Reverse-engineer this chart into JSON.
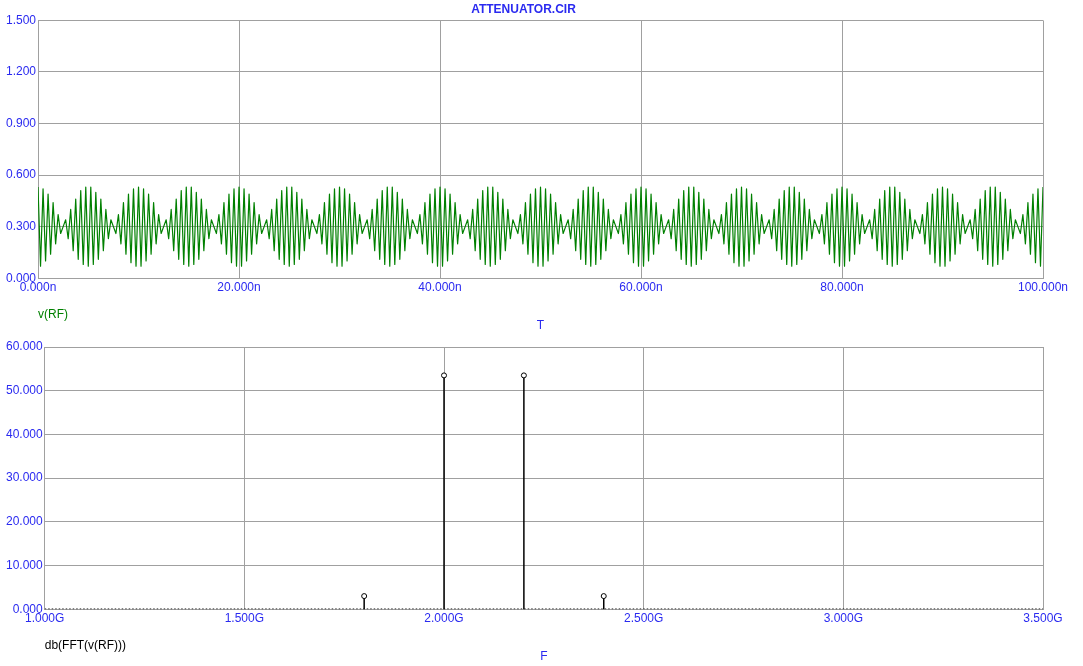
{
  "chart_data": [
    {
      "type": "line",
      "title": "ATTENUATOR.CIR",
      "xlabel": "T",
      "grid": true,
      "legend": "bottom left",
      "marker": "none",
      "line_style": "solid",
      "xlim": [
        0,
        100
      ],
      "xticks": [
        {
          "value": 0,
          "label": "0.000n"
        },
        {
          "value": 20,
          "label": "20.000n"
        },
        {
          "value": 40,
          "label": "40.000n"
        },
        {
          "value": 60,
          "label": "60.000n"
        },
        {
          "value": 80,
          "label": "80.000n"
        },
        {
          "value": 100,
          "label": "100.000n"
        }
      ],
      "ylim": [
        0,
        1.5
      ],
      "yticks": [
        {
          "value": 0,
          "label": "0.000"
        },
        {
          "value": 0.3,
          "label": "0.300"
        },
        {
          "value": 0.6,
          "label": "0.600"
        },
        {
          "value": 0.9,
          "label": "0.900"
        },
        {
          "value": 1.2,
          "label": "1.200"
        },
        {
          "value": 1.5,
          "label": "1.500"
        }
      ],
      "series": [
        {
          "name": "v(RF)",
          "color": "#008000",
          "x": [
            0,
            0.25,
            0.5,
            0.75,
            1,
            1.25,
            1.5,
            1.75,
            2,
            2.25,
            2.5,
            2.75,
            3,
            3.25,
            3.5,
            3.75,
            4,
            4.25,
            4.5,
            4.75,
            5,
            5.25,
            5.5,
            5.75,
            6,
            6.25,
            6.5,
            6.75,
            7,
            7.25,
            7.5,
            7.75,
            8,
            8.25,
            8.5,
            8.75,
            9,
            9.25,
            9.5,
            9.75,
            10,
            10.25,
            10.5,
            10.75,
            11,
            11.25,
            11.5,
            11.75,
            12,
            12.25,
            12.5,
            12.75,
            13,
            13.25,
            13.5,
            13.75,
            14,
            14.25,
            14.5,
            14.75,
            15,
            15.25,
            15.5,
            15.75,
            16,
            16.25,
            16.5,
            16.75,
            17,
            17.25,
            17.5,
            17.75,
            18,
            18.25,
            18.5,
            18.75,
            19,
            19.25,
            19.5,
            19.75,
            20,
            20.25,
            20.5,
            20.75,
            21,
            21.25,
            21.5,
            21.75,
            22,
            22.25,
            22.5,
            22.75,
            23,
            23.25,
            23.5,
            23.75,
            24,
            24.25,
            24.5,
            24.75,
            25,
            25.25,
            25.5,
            25.75,
            26,
            26.25,
            26.5,
            26.75,
            27,
            27.25,
            27.5,
            27.75,
            28,
            28.25,
            28.5,
            28.75,
            29,
            29.25,
            29.5,
            29.75,
            30,
            30.25,
            30.5,
            30.75,
            31,
            31.25,
            31.5,
            31.75,
            32,
            32.25,
            32.5,
            32.75,
            33,
            33.25,
            33.5,
            33.75,
            34,
            34.25,
            34.5,
            34.75,
            35,
            35.25,
            35.5,
            35.75,
            36,
            36.25,
            36.5,
            36.75,
            37,
            37.25,
            37.5,
            37.75,
            38,
            38.25,
            38.5,
            38.75,
            39,
            39.25,
            39.5,
            39.75,
            40,
            40.25,
            40.5,
            40.75,
            41,
            41.25,
            41.5,
            41.75,
            42,
            42.25,
            42.5,
            42.75,
            43,
            43.25,
            43.5,
            43.75,
            44,
            44.25,
            44.5,
            44.75,
            45,
            45.25,
            45.5,
            45.75,
            46,
            46.25,
            46.5,
            46.75,
            47,
            47.25,
            47.5,
            47.75,
            48,
            48.25,
            48.5,
            48.75,
            49,
            49.25,
            49.5,
            49.75,
            50,
            50.25,
            50.5,
            50.75,
            51,
            51.25,
            51.5,
            51.75,
            52,
            52.25,
            52.5,
            52.75,
            53,
            53.25,
            53.5,
            53.75,
            54,
            54.25,
            54.5,
            54.75,
            55,
            55.25,
            55.5,
            55.75,
            56,
            56.25,
            56.5,
            56.75,
            57,
            57.25,
            57.5,
            57.75,
            58,
            58.25,
            58.5,
            58.75,
            59,
            59.25,
            59.5,
            59.75,
            60,
            60.25,
            60.5,
            60.75,
            61,
            61.25,
            61.5,
            61.75,
            62,
            62.25,
            62.5,
            62.75,
            63,
            63.25,
            63.5,
            63.75,
            64,
            64.25,
            64.5,
            64.75,
            65,
            65.25,
            65.5,
            65.75,
            66,
            66.25,
            66.5,
            66.75,
            67,
            67.25,
            67.5,
            67.75,
            68,
            68.25,
            68.5,
            68.75,
            69,
            69.25,
            69.5,
            69.75,
            70,
            70.25,
            70.5,
            70.75,
            71,
            71.25,
            71.5,
            71.75,
            72,
            72.25,
            72.5,
            72.75,
            73,
            73.25,
            73.5,
            73.75,
            74,
            74.25,
            74.5,
            74.75,
            75,
            75.25,
            75.5,
            75.75,
            76,
            76.25,
            76.5,
            76.75,
            77,
            77.25,
            77.5,
            77.75,
            78,
            78.25,
            78.5,
            78.75,
            79,
            79.25,
            79.5,
            79.75,
            80,
            80.25,
            80.5,
            80.75,
            81,
            81.25,
            81.5,
            81.75,
            82,
            82.25,
            82.5,
            82.75,
            83,
            83.25,
            83.5,
            83.75,
            84,
            84.25,
            84.5,
            84.75,
            85,
            85.25,
            85.5,
            85.75,
            86,
            86.25,
            86.5,
            86.75,
            87,
            87.25,
            87.5,
            87.75,
            88,
            88.25,
            88.5,
            88.75,
            89,
            89.25,
            89.5,
            89.75,
            90,
            90.25,
            90.5,
            90.75,
            91,
            91.25,
            91.5,
            91.75,
            92,
            92.25,
            92.5,
            92.75,
            93,
            93.25,
            93.5,
            93.75,
            94,
            94.25,
            94.5,
            94.75,
            95,
            95.25,
            95.5,
            95.75,
            96,
            96.25,
            96.5,
            96.75,
            97,
            97.25,
            97.5,
            97.75,
            98,
            98.25,
            98.5,
            98.75,
            99,
            99.25,
            99.5,
            99.75,
            100
          ],
          "values": [
            0.53,
            0.07,
            0.52,
            0.1,
            0.49,
            0.14,
            0.44,
            0.2,
            0.37,
            0.26,
            0.3,
            0.34,
            0.23,
            0.4,
            0.16,
            0.46,
            0.11,
            0.51,
            0.08,
            0.53,
            0.07,
            0.53,
            0.08,
            0.5,
            0.11,
            0.46,
            0.16,
            0.4,
            0.23,
            0.34,
            0.3,
            0.26,
            0.37,
            0.2,
            0.44,
            0.14,
            0.49,
            0.09,
            0.52,
            0.07,
            0.53,
            0.07,
            0.52,
            0.1,
            0.49,
            0.14,
            0.44,
            0.2,
            0.37,
            0.26,
            0.3,
            0.34,
            0.23,
            0.4,
            0.16,
            0.46,
            0.11,
            0.51,
            0.08,
            0.53,
            0.07,
            0.53,
            0.08,
            0.5,
            0.11,
            0.46,
            0.16,
            0.4,
            0.23,
            0.34,
            0.3,
            0.26,
            0.37,
            0.2,
            0.44,
            0.14,
            0.49,
            0.09,
            0.52,
            0.07,
            0.53,
            0.07,
            0.52,
            0.1,
            0.49,
            0.14,
            0.44,
            0.2,
            0.37,
            0.26,
            0.3,
            0.34,
            0.23,
            0.4,
            0.16,
            0.46,
            0.11,
            0.51,
            0.08,
            0.53,
            0.07,
            0.53,
            0.08,
            0.5,
            0.11,
            0.46,
            0.16,
            0.4,
            0.23,
            0.34,
            0.3,
            0.26,
            0.37,
            0.2,
            0.44,
            0.14,
            0.49,
            0.09,
            0.52,
            0.07,
            0.53,
            0.07,
            0.52,
            0.1,
            0.49,
            0.14,
            0.44,
            0.2,
            0.37,
            0.26,
            0.3,
            0.34,
            0.23,
            0.4,
            0.16,
            0.46,
            0.11,
            0.51,
            0.08,
            0.53,
            0.07,
            0.53,
            0.08,
            0.5,
            0.11,
            0.46,
            0.16,
            0.4,
            0.23,
            0.34,
            0.3,
            0.26,
            0.37,
            0.2,
            0.44,
            0.14,
            0.49,
            0.09,
            0.52,
            0.07,
            0.53,
            0.07,
            0.52,
            0.1,
            0.49,
            0.14,
            0.44,
            0.2,
            0.37,
            0.26,
            0.3,
            0.34,
            0.23,
            0.4,
            0.16,
            0.46,
            0.11,
            0.51,
            0.08,
            0.53,
            0.07,
            0.53,
            0.08,
            0.5,
            0.11,
            0.46,
            0.16,
            0.4,
            0.23,
            0.34,
            0.3,
            0.26,
            0.37,
            0.2,
            0.44,
            0.14,
            0.49,
            0.09,
            0.52,
            0.07,
            0.53,
            0.07,
            0.52,
            0.1,
            0.49,
            0.14,
            0.44,
            0.2,
            0.37,
            0.26,
            0.3,
            0.34,
            0.23,
            0.4,
            0.16,
            0.46,
            0.11,
            0.51,
            0.08,
            0.53,
            0.07,
            0.53,
            0.08,
            0.5,
            0.11,
            0.46,
            0.16,
            0.4,
            0.23,
            0.34,
            0.3,
            0.26,
            0.37,
            0.2,
            0.44,
            0.14,
            0.49,
            0.09,
            0.52,
            0.07,
            0.53,
            0.07,
            0.52,
            0.1,
            0.49,
            0.14,
            0.44,
            0.2,
            0.37,
            0.26,
            0.3,
            0.34,
            0.23,
            0.4,
            0.16,
            0.46,
            0.11,
            0.51,
            0.08,
            0.53,
            0.07,
            0.53,
            0.08,
            0.5,
            0.11,
            0.46,
            0.16,
            0.4,
            0.23,
            0.34,
            0.3,
            0.26,
            0.37,
            0.2,
            0.44,
            0.14,
            0.49,
            0.09,
            0.52,
            0.07,
            0.53,
            0.07,
            0.52,
            0.1,
            0.49,
            0.14,
            0.44,
            0.2,
            0.37,
            0.26,
            0.3,
            0.34,
            0.23,
            0.4,
            0.16,
            0.46,
            0.11,
            0.51,
            0.08,
            0.53,
            0.07,
            0.53,
            0.08,
            0.5,
            0.11,
            0.46,
            0.16,
            0.4,
            0.23,
            0.34,
            0.3,
            0.26,
            0.37,
            0.2,
            0.44,
            0.14,
            0.49,
            0.09,
            0.52,
            0.07,
            0.53,
            0.07,
            0.52,
            0.1,
            0.49,
            0.14,
            0.44,
            0.2,
            0.37,
            0.26,
            0.3,
            0.34,
            0.23,
            0.4,
            0.16,
            0.46,
            0.11,
            0.51,
            0.08,
            0.53,
            0.07,
            0.53,
            0.08,
            0.5,
            0.11,
            0.46,
            0.16,
            0.4,
            0.23,
            0.34,
            0.3,
            0.26,
            0.37,
            0.2,
            0.44,
            0.14,
            0.49,
            0.09,
            0.52,
            0.07,
            0.53,
            0.07,
            0.52,
            0.1,
            0.49,
            0.14,
            0.44,
            0.2,
            0.37,
            0.26,
            0.3,
            0.34,
            0.23,
            0.4,
            0.16,
            0.46,
            0.11,
            0.51,
            0.08,
            0.53,
            0.07,
            0.53,
            0.08,
            0.5,
            0.11,
            0.46,
            0.16,
            0.4,
            0.23,
            0.34,
            0.3,
            0.26,
            0.37,
            0.2,
            0.44,
            0.14,
            0.49,
            0.09,
            0.52,
            0.07,
            0.53
          ]
        }
      ]
    },
    {
      "type": "lollipop",
      "xlabel": "F",
      "grid": true,
      "legend": "bottom left",
      "marker": "circle",
      "xlim": [
        1,
        3.5
      ],
      "xticks": [
        {
          "value": 1,
          "label": "1.000G"
        },
        {
          "value": 1.5,
          "label": "1.500G"
        },
        {
          "value": 2,
          "label": "2.000G"
        },
        {
          "value": 2.5,
          "label": "2.500G"
        },
        {
          "value": 3,
          "label": "3.000G"
        },
        {
          "value": 3.5,
          "label": "3.500G"
        }
      ],
      "ylim": [
        0,
        60
      ],
      "yticks": [
        {
          "value": 0,
          "label": "0.000"
        },
        {
          "value": 10,
          "label": "10.000"
        },
        {
          "value": 20,
          "label": "20.000"
        },
        {
          "value": 30,
          "label": "30.000"
        },
        {
          "value": 40,
          "label": "40.000"
        },
        {
          "value": 50,
          "label": "50.000"
        },
        {
          "value": 60,
          "label": "60.000"
        }
      ],
      "series": [
        {
          "name": "db(FFT(v(RF)))",
          "color": "#000000",
          "x": [
            1.8,
            2,
            2.2,
            2.4
          ],
          "values": [
            3,
            53.5,
            53.5,
            3
          ]
        },
        {
          "type": "line",
          "line_style": "dotted",
          "marker": "none",
          "color": "#000000",
          "x": [
            1,
            3.5
          ],
          "values": [
            0,
            0
          ]
        }
      ]
    }
  ]
}
